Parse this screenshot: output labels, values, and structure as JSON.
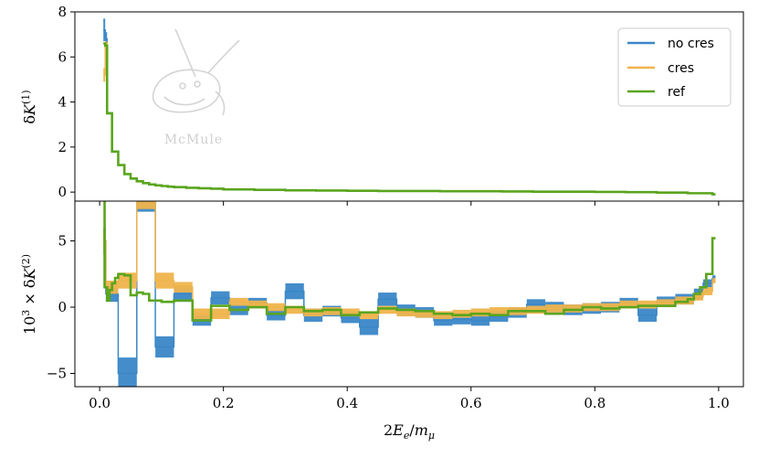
{
  "chart_data": {
    "type": "line",
    "xlabel_parts": [
      "2",
      "E",
      "e",
      "/",
      "m",
      "μ"
    ],
    "x_ticks": [
      "0.0",
      "0.2",
      "0.4",
      "0.6",
      "0.8",
      "1.0"
    ],
    "xlim": [
      -0.04,
      1.04
    ],
    "watermark": "McMule",
    "legend": {
      "placement": "top-right",
      "entries": [
        {
          "name": "no cres",
          "color": "#3a87c7"
        },
        {
          "name": "cres",
          "color": "#efb44c"
        },
        {
          "name": "ref",
          "color": "#5aa51f"
        }
      ]
    },
    "panels": [
      {
        "ylabel_parts": [
          "δ",
          "K",
          "(1)"
        ],
        "ylim": [
          -0.4,
          8.0
        ],
        "y_ticks": [
          "0",
          "2",
          "4",
          "6",
          "8"
        ],
        "y_tick_values": [
          0,
          2,
          4,
          6,
          8
        ],
        "series": [
          {
            "name": "no cres",
            "style": "band",
            "color": "#3a87c7",
            "x": [
              0.006,
              0.009,
              0.012,
              0.02,
              0.03,
              0.04,
              0.05,
              0.06,
              0.07,
              0.08,
              0.09,
              0.1,
              0.11,
              0.12,
              0.14,
              0.16,
              0.18,
              0.2,
              0.25,
              0.3,
              0.35,
              0.4,
              0.45,
              0.5,
              0.55,
              0.6,
              0.65,
              0.7,
              0.75,
              0.8,
              0.85,
              0.9,
              0.95,
              0.99
            ],
            "y": [
              7.2,
              6.8,
              3.5,
              1.8,
              1.2,
              0.8,
              0.6,
              0.48,
              0.4,
              0.34,
              0.3,
              0.27,
              0.24,
              0.22,
              0.19,
              0.17,
              0.15,
              0.12,
              0.1,
              0.08,
              0.07,
              0.06,
              0.05,
              0.05,
              0.04,
              0.04,
              0.03,
              0.02,
              0.02,
              0.01,
              0.0,
              -0.02,
              -0.05,
              -0.1
            ],
            "err": [
              0.5,
              0.3,
              0.05,
              0.03,
              0.02,
              0.02,
              0.01,
              0.01,
              0.01,
              0.01,
              0.01,
              0.01,
              0.01,
              0.01,
              0.01,
              0.01,
              0.01,
              0.01,
              0.01,
              0.01,
              0.01,
              0.01,
              0.01,
              0.01,
              0.01,
              0.01,
              0.01,
              0.01,
              0.01,
              0.01,
              0.01,
              0.01,
              0.01,
              0.01
            ]
          },
          {
            "name": "cres",
            "style": "band",
            "color": "#efb44c",
            "x": [
              0.006,
              0.009,
              0.012,
              0.02,
              0.03,
              0.04,
              0.05,
              0.06,
              0.07,
              0.08,
              0.09,
              0.1,
              0.11,
              0.12,
              0.14,
              0.16,
              0.18,
              0.2,
              0.25,
              0.3,
              0.35,
              0.4,
              0.45,
              0.5,
              0.55,
              0.6,
              0.65,
              0.7,
              0.75,
              0.8,
              0.85,
              0.9,
              0.95,
              0.99
            ],
            "y": [
              5.2,
              6.6,
              3.5,
              1.8,
              1.2,
              0.8,
              0.6,
              0.48,
              0.4,
              0.34,
              0.3,
              0.27,
              0.24,
              0.22,
              0.19,
              0.17,
              0.15,
              0.12,
              0.1,
              0.08,
              0.07,
              0.06,
              0.05,
              0.05,
              0.04,
              0.04,
              0.03,
              0.02,
              0.02,
              0.01,
              0.0,
              -0.02,
              -0.05,
              -0.1
            ],
            "err": [
              0.3,
              0.1,
              0.03,
              0.02,
              0.02,
              0.01,
              0.01,
              0.01,
              0.01,
              0.01,
              0.01,
              0.01,
              0.01,
              0.01,
              0.01,
              0.01,
              0.01,
              0.01,
              0.01,
              0.01,
              0.01,
              0.01,
              0.01,
              0.01,
              0.01,
              0.01,
              0.01,
              0.01,
              0.01,
              0.01,
              0.01,
              0.01,
              0.01,
              0.01
            ]
          },
          {
            "name": "ref",
            "style": "step",
            "color": "#5aa51f",
            "x": [
              0.006,
              0.009,
              0.012,
              0.02,
              0.03,
              0.04,
              0.05,
              0.06,
              0.07,
              0.08,
              0.09,
              0.1,
              0.11,
              0.12,
              0.14,
              0.16,
              0.18,
              0.2,
              0.25,
              0.3,
              0.35,
              0.4,
              0.45,
              0.5,
              0.55,
              0.6,
              0.65,
              0.7,
              0.75,
              0.8,
              0.85,
              0.9,
              0.95,
              0.99
            ],
            "y": [
              6.6,
              6.5,
              3.5,
              1.8,
              1.2,
              0.8,
              0.6,
              0.48,
              0.4,
              0.34,
              0.3,
              0.27,
              0.24,
              0.22,
              0.19,
              0.17,
              0.15,
              0.12,
              0.1,
              0.08,
              0.07,
              0.06,
              0.05,
              0.05,
              0.04,
              0.04,
              0.03,
              0.02,
              0.02,
              0.01,
              0.0,
              -0.02,
              -0.05,
              -0.1
            ]
          }
        ]
      },
      {
        "ylabel_parts": [
          "10",
          "3",
          " × ",
          "δ",
          "K",
          "(2)"
        ],
        "ylim": [
          -6.0,
          8.0
        ],
        "y_ticks": [
          "−5",
          "0",
          "5"
        ],
        "y_tick_values": [
          -5,
          0,
          5
        ],
        "series": [
          {
            "name": "no cres",
            "style": "band",
            "color": "#3a87c7",
            "x": [
              0.006,
              0.01,
              0.03,
              0.06,
              0.09,
              0.12,
              0.15,
              0.18,
              0.21,
              0.24,
              0.27,
              0.3,
              0.33,
              0.36,
              0.39,
              0.42,
              0.45,
              0.48,
              0.51,
              0.54,
              0.57,
              0.6,
              0.63,
              0.66,
              0.69,
              0.72,
              0.75,
              0.78,
              0.81,
              0.84,
              0.87,
              0.9,
              0.93,
              0.96,
              0.975,
              0.99
            ],
            "y": [
              5.0,
              1.0,
              -5.0,
              8.0,
              -3.0,
              1.0,
              -1.0,
              0.7,
              -0.2,
              0.3,
              -0.6,
              1.2,
              -0.6,
              -0.3,
              -0.8,
              -1.5,
              0.6,
              -0.2,
              -0.4,
              -1.0,
              -0.9,
              -1.0,
              -0.7,
              -0.4,
              0.2,
              0.0,
              -0.2,
              -0.1,
              0.0,
              0.3,
              -0.6,
              0.4,
              0.6,
              1.0,
              1.8,
              2.2
            ],
            "err": [
              1.0,
              0.6,
              1.2,
              0.8,
              0.8,
              0.6,
              0.4,
              0.5,
              0.4,
              0.4,
              0.4,
              0.6,
              0.5,
              0.4,
              0.4,
              0.6,
              0.5,
              0.4,
              0.4,
              0.4,
              0.4,
              0.4,
              0.4,
              0.4,
              0.4,
              0.4,
              0.4,
              0.4,
              0.4,
              0.4,
              0.5,
              0.4,
              0.4,
              0.4,
              0.3,
              0.2
            ]
          },
          {
            "name": "cres",
            "style": "band",
            "color": "#efb44c",
            "x": [
              0.006,
              0.01,
              0.03,
              0.06,
              0.09,
              0.12,
              0.15,
              0.18,
              0.21,
              0.24,
              0.27,
              0.3,
              0.33,
              0.36,
              0.39,
              0.42,
              0.45,
              0.48,
              0.51,
              0.54,
              0.57,
              0.6,
              0.63,
              0.66,
              0.69,
              0.72,
              0.75,
              0.78,
              0.81,
              0.84,
              0.87,
              0.9,
              0.93,
              0.96,
              0.975,
              0.99
            ],
            "y": [
              5.0,
              1.5,
              2.0,
              8.0,
              2.0,
              1.5,
              -0.5,
              -0.5,
              0.4,
              0.2,
              0.0,
              -0.2,
              -0.4,
              -0.3,
              -0.4,
              -0.6,
              -0.2,
              -0.4,
              -0.5,
              -0.6,
              -0.5,
              -0.4,
              -0.3,
              -0.3,
              -0.2,
              -0.1,
              -0.1,
              0.0,
              0.0,
              0.2,
              0.2,
              0.3,
              0.5,
              0.8,
              1.2,
              2.0
            ],
            "err": [
              0.8,
              0.5,
              0.6,
              0.6,
              0.6,
              0.4,
              0.4,
              0.4,
              0.3,
              0.3,
              0.3,
              0.3,
              0.3,
              0.3,
              0.3,
              0.3,
              0.3,
              0.3,
              0.3,
              0.3,
              0.3,
              0.3,
              0.3,
              0.3,
              0.3,
              0.3,
              0.3,
              0.3,
              0.3,
              0.3,
              0.3,
              0.3,
              0.3,
              0.3,
              0.3,
              0.2
            ]
          },
          {
            "name": "ref",
            "style": "step",
            "color": "#5aa51f",
            "x": [
              0.006,
              0.008,
              0.012,
              0.016,
              0.02,
              0.025,
              0.03,
              0.04,
              0.05,
              0.06,
              0.07,
              0.08,
              0.1,
              0.12,
              0.15,
              0.18,
              0.21,
              0.24,
              0.27,
              0.3,
              0.33,
              0.36,
              0.39,
              0.42,
              0.45,
              0.48,
              0.51,
              0.54,
              0.57,
              0.6,
              0.63,
              0.66,
              0.69,
              0.72,
              0.75,
              0.78,
              0.81,
              0.84,
              0.87,
              0.9,
              0.93,
              0.95,
              0.96,
              0.97,
              0.98,
              0.99
            ],
            "y": [
              8.0,
              1.5,
              0.5,
              1.3,
              1.8,
              2.2,
              2.5,
              2.4,
              0.9,
              1.1,
              1.0,
              0.5,
              0.4,
              0.5,
              -1.0,
              0.1,
              -0.2,
              0.0,
              -0.5,
              0.0,
              -0.3,
              -0.2,
              -0.6,
              -0.4,
              -0.1,
              -0.2,
              -0.3,
              -0.5,
              -0.6,
              -0.5,
              -0.6,
              -0.3,
              -0.3,
              -0.5,
              -0.2,
              0.0,
              -0.1,
              0.0,
              0.1,
              0.1,
              0.4,
              0.6,
              1.0,
              1.5,
              2.5,
              5.2
            ]
          }
        ]
      }
    ]
  }
}
